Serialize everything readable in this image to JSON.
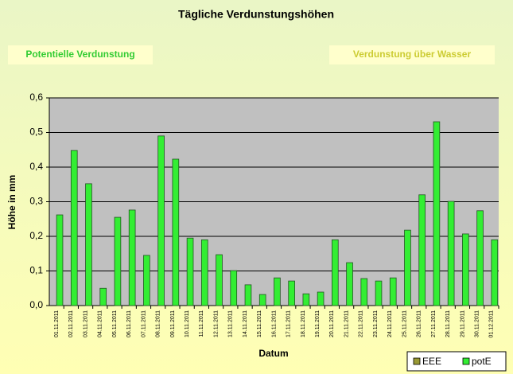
{
  "chart_data": {
    "type": "bar",
    "title": "Tägliche Verdunstungshöhen",
    "annotations": [
      "Potentielle Verdunstung",
      "Verdunstung über Wasser"
    ],
    "y_label": "Höhe in mm",
    "x_label": "Datum",
    "categories": [
      "01.11.2011",
      "02.11.2011",
      "03.11.2011",
      "04.11.2011",
      "05.11.2011",
      "06.11.2011",
      "07.11.2011",
      "08.11.2011",
      "09.11.2011",
      "10.11.2011",
      "11.11.2011",
      "12.11.2011",
      "13.11.2011",
      "14.11.2011",
      "15.11.2011",
      "16.11.2011",
      "17.11.2011",
      "18.11.2011",
      "19.11.2011",
      "20.11.2011",
      "21.11.2011",
      "22.11.2011",
      "23.11.2011",
      "24.11.2011",
      "25.11.2011",
      "26.11.2011",
      "27.11.2011",
      "28.11.2011",
      "29.11.2011",
      "30.11.2011",
      "01.12.2011"
    ],
    "series": [
      {
        "name": "EEE",
        "color": "#999933",
        "values": [
          null,
          null,
          null,
          null,
          null,
          null,
          null,
          null,
          null,
          null,
          null,
          null,
          null,
          null,
          null,
          null,
          null,
          null,
          null,
          null,
          null,
          null,
          null,
          null,
          null,
          null,
          null,
          null,
          null,
          null,
          null
        ]
      },
      {
        "name": "potE",
        "color": "#33ee33",
        "values": [
          0.262,
          0.448,
          0.352,
          0.05,
          0.255,
          0.276,
          0.145,
          0.49,
          0.423,
          0.195,
          0.19,
          0.147,
          0.101,
          0.06,
          0.032,
          0.08,
          0.071,
          0.034,
          0.039,
          0.19,
          0.124,
          0.078,
          0.071,
          0.08,
          0.218,
          0.32,
          0.531,
          0.301,
          0.207,
          0.274,
          0.19
        ]
      }
    ],
    "ylim": [
      0,
      0.6
    ],
    "yticks": [
      {
        "value": 0,
        "label": "0,0"
      },
      {
        "value": 0.1,
        "label": "0,1"
      },
      {
        "value": 0.2,
        "label": "0,2"
      },
      {
        "value": 0.3,
        "label": "0,3"
      },
      {
        "value": 0.4,
        "label": "0,4"
      },
      {
        "value": 0.5,
        "label": "0,5"
      },
      {
        "value": 0.6,
        "label": "0,6"
      }
    ],
    "grid": true,
    "legend": "bottom-right"
  }
}
